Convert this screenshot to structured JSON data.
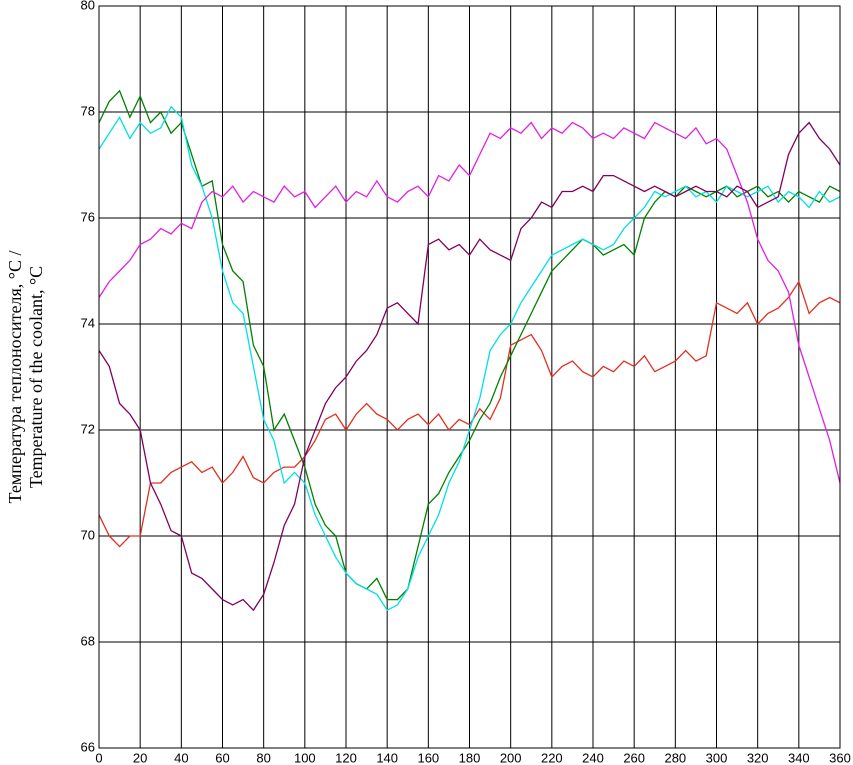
{
  "chart_data": {
    "type": "line",
    "ylabel": [
      "Температура теплоносителя, °C /",
      "Temperature of the coolant, °C"
    ],
    "x": [
      0,
      5,
      10,
      15,
      20,
      25,
      30,
      35,
      40,
      45,
      50,
      55,
      60,
      65,
      70,
      75,
      80,
      85,
      90,
      95,
      100,
      105,
      110,
      115,
      120,
      125,
      130,
      135,
      140,
      145,
      150,
      155,
      160,
      165,
      170,
      175,
      180,
      185,
      190,
      195,
      200,
      205,
      210,
      215,
      220,
      225,
      230,
      235,
      240,
      245,
      250,
      255,
      260,
      265,
      270,
      275,
      280,
      285,
      290,
      295,
      300,
      305,
      310,
      315,
      320,
      325,
      330,
      335,
      340,
      345,
      350,
      355,
      360
    ],
    "xlim": [
      0,
      360
    ],
    "xticks": [
      0,
      20,
      40,
      60,
      80,
      100,
      120,
      140,
      160,
      180,
      200,
      220,
      240,
      260,
      280,
      300,
      320,
      340,
      360
    ],
    "ylim": [
      66,
      80
    ],
    "yticks": [
      66,
      68,
      70,
      72,
      74,
      76,
      78,
      80
    ],
    "grid": true,
    "series": [
      {
        "color": "#e03020",
        "values": [
          70.4,
          70.0,
          69.8,
          70.0,
          70.0,
          71.0,
          71.0,
          71.2,
          71.3,
          71.4,
          71.2,
          71.3,
          71.0,
          71.2,
          71.5,
          71.1,
          71.0,
          71.2,
          71.3,
          71.3,
          71.5,
          71.8,
          72.2,
          72.3,
          72.0,
          72.3,
          72.5,
          72.3,
          72.2,
          72.0,
          72.2,
          72.3,
          72.1,
          72.3,
          72.0,
          72.2,
          72.1,
          72.4,
          72.2,
          72.6,
          73.6,
          73.7,
          73.8,
          73.5,
          73.0,
          73.2,
          73.3,
          73.1,
          73.0,
          73.2,
          73.1,
          73.3,
          73.2,
          73.4,
          73.1,
          73.2,
          73.3,
          73.5,
          73.3,
          73.4,
          74.4,
          74.3,
          74.2,
          74.4,
          74.0,
          74.2,
          74.3,
          74.5,
          74.8,
          74.2,
          74.4,
          74.5,
          74.4
        ]
      },
      {
        "color": "#008000",
        "values": [
          77.8,
          78.2,
          78.4,
          77.9,
          78.3,
          77.8,
          78.0,
          77.6,
          77.8,
          77.2,
          76.6,
          76.7,
          75.5,
          75.0,
          74.8,
          73.6,
          73.2,
          72.0,
          72.3,
          71.8,
          71.3,
          70.6,
          70.2,
          70.0,
          69.3,
          69.1,
          69.0,
          69.2,
          68.8,
          68.8,
          69.0,
          69.8,
          70.6,
          70.8,
          71.2,
          71.5,
          71.8,
          72.2,
          72.5,
          73.0,
          73.4,
          73.8,
          74.2,
          74.6,
          75.0,
          75.2,
          75.4,
          75.6,
          75.5,
          75.3,
          75.4,
          75.5,
          75.3,
          76.0,
          76.3,
          76.5,
          76.4,
          76.6,
          76.5,
          76.4,
          76.5,
          76.6,
          76.4,
          76.5,
          76.6,
          76.4,
          76.5,
          76.3,
          76.5,
          76.4,
          76.3,
          76.6,
          76.5
        ]
      },
      {
        "color": "#00e0e0",
        "values": [
          77.3,
          77.6,
          77.9,
          77.5,
          77.8,
          77.6,
          77.7,
          78.1,
          77.9,
          77.0,
          76.6,
          76.0,
          75.0,
          74.4,
          74.2,
          73.2,
          72.2,
          71.8,
          71.0,
          71.2,
          71.0,
          70.4,
          70.0,
          69.6,
          69.3,
          69.1,
          69.0,
          68.9,
          68.6,
          68.7,
          69.0,
          69.6,
          70.0,
          70.4,
          71.0,
          71.4,
          72.0,
          72.6,
          73.5,
          73.8,
          74.0,
          74.4,
          74.7,
          75.0,
          75.3,
          75.4,
          75.5,
          75.6,
          75.5,
          75.4,
          75.5,
          75.8,
          76.0,
          76.2,
          76.5,
          76.4,
          76.5,
          76.6,
          76.4,
          76.5,
          76.3,
          76.6,
          76.5,
          76.4,
          76.5,
          76.6,
          76.3,
          76.5,
          76.4,
          76.2,
          76.5,
          76.3,
          76.4
        ]
      },
      {
        "color": "#e020e0",
        "values": [
          74.5,
          74.8,
          75.0,
          75.2,
          75.5,
          75.6,
          75.8,
          75.7,
          75.9,
          75.8,
          76.3,
          76.5,
          76.4,
          76.6,
          76.3,
          76.5,
          76.4,
          76.3,
          76.6,
          76.4,
          76.5,
          76.2,
          76.4,
          76.6,
          76.3,
          76.5,
          76.4,
          76.7,
          76.4,
          76.3,
          76.5,
          76.6,
          76.4,
          76.8,
          76.7,
          77.0,
          76.8,
          77.2,
          77.6,
          77.5,
          77.7,
          77.6,
          77.8,
          77.5,
          77.7,
          77.6,
          77.8,
          77.7,
          77.5,
          77.6,
          77.5,
          77.7,
          77.6,
          77.5,
          77.8,
          77.7,
          77.6,
          77.5,
          77.7,
          77.4,
          77.5,
          77.3,
          76.8,
          76.3,
          75.6,
          75.2,
          75.0,
          74.6,
          73.6,
          73.0,
          72.4,
          71.8,
          71.0
        ]
      },
      {
        "color": "#800060",
        "values": [
          73.5,
          73.2,
          72.5,
          72.3,
          72.0,
          71.0,
          70.6,
          70.1,
          70.0,
          69.3,
          69.2,
          69.0,
          68.8,
          68.7,
          68.8,
          68.6,
          68.9,
          69.5,
          70.2,
          70.6,
          71.5,
          72.0,
          72.5,
          72.8,
          73.0,
          73.3,
          73.5,
          73.8,
          74.3,
          74.4,
          74.2,
          74.0,
          75.5,
          75.6,
          75.4,
          75.5,
          75.3,
          75.6,
          75.4,
          75.3,
          75.2,
          75.8,
          76.0,
          76.3,
          76.2,
          76.5,
          76.5,
          76.6,
          76.5,
          76.8,
          76.8,
          76.7,
          76.6,
          76.5,
          76.6,
          76.5,
          76.4,
          76.5,
          76.6,
          76.5,
          76.5,
          76.4,
          76.6,
          76.5,
          76.2,
          76.3,
          76.4,
          77.2,
          77.6,
          77.8,
          77.5,
          77.3,
          77.0
        ]
      }
    ]
  }
}
